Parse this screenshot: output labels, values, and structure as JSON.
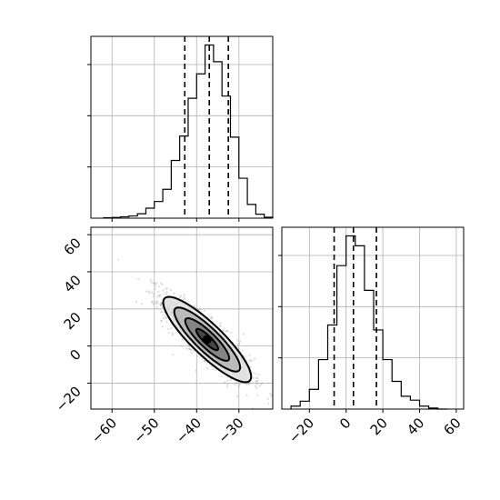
{
  "chart_data": {
    "type": "corner",
    "title": "",
    "grid": true,
    "quantile_line_style": "dashed",
    "panels": [
      {
        "id": "hist-1",
        "type": "histogram",
        "parameter_index": 0,
        "xlim": [
          -65,
          -22
        ],
        "xticks": [
          -60,
          -50,
          -40,
          -30
        ],
        "yticks_shown_without_labels": 3,
        "bin_edges": [
          -62,
          -60,
          -58,
          -56,
          -54,
          -52,
          -50,
          -48,
          -46,
          -44,
          -42,
          -40,
          -38,
          -36,
          -34,
          -32,
          -30,
          -28,
          -26,
          -24,
          -22
        ],
        "counts": [
          2,
          3,
          6,
          10,
          20,
          45,
          75,
          130,
          260,
          370,
          540,
          650,
          780,
          705,
          550,
          365,
          180,
          62,
          18,
          4
        ],
        "quantiles": [
          -42.8,
          -37.0,
          -32.5
        ]
      },
      {
        "id": "scatter-2d",
        "type": "2d-density",
        "xlim": [
          -65,
          -22
        ],
        "ylim": [
          -34,
          64
        ],
        "xticks": [
          -60,
          -50,
          -40,
          -30
        ],
        "yticks": [
          -20,
          0,
          20,
          40,
          60
        ],
        "xtick_labels": [
          "−60",
          "−50",
          "−40",
          "−30"
        ],
        "ytick_labels": [
          "−20",
          "0",
          "20",
          "40",
          "60"
        ],
        "mean": [
          -37.5,
          3.5
        ],
        "std": [
          5.2,
          11.5
        ],
        "correlation": -0.87,
        "contour_levels_sigma": [
          0.5,
          1.0,
          1.5,
          2.0
        ],
        "point_color": "#9a9a9a"
      },
      {
        "id": "hist-2",
        "type": "histogram",
        "parameter_index": 1,
        "xlim": [
          -35,
          64
        ],
        "xticks": [
          -20,
          0,
          20,
          40,
          60
        ],
        "xtick_labels": [
          "−20",
          "0",
          "20",
          "40",
          "60"
        ],
        "yticks_shown_without_labels": 3,
        "bin_edges": [
          -30,
          -25,
          -20,
          -15,
          -10,
          -5,
          0,
          5,
          10,
          15,
          20,
          25,
          30,
          35,
          40,
          45,
          50,
          55
        ],
        "counts": [
          3,
          8,
          20,
          50,
          85,
          145,
          175,
          165,
          120,
          80,
          50,
          28,
          13,
          9,
          3,
          1,
          0
        ],
        "quantiles": [
          -6.5,
          4.0,
          16.5
        ]
      }
    ]
  }
}
